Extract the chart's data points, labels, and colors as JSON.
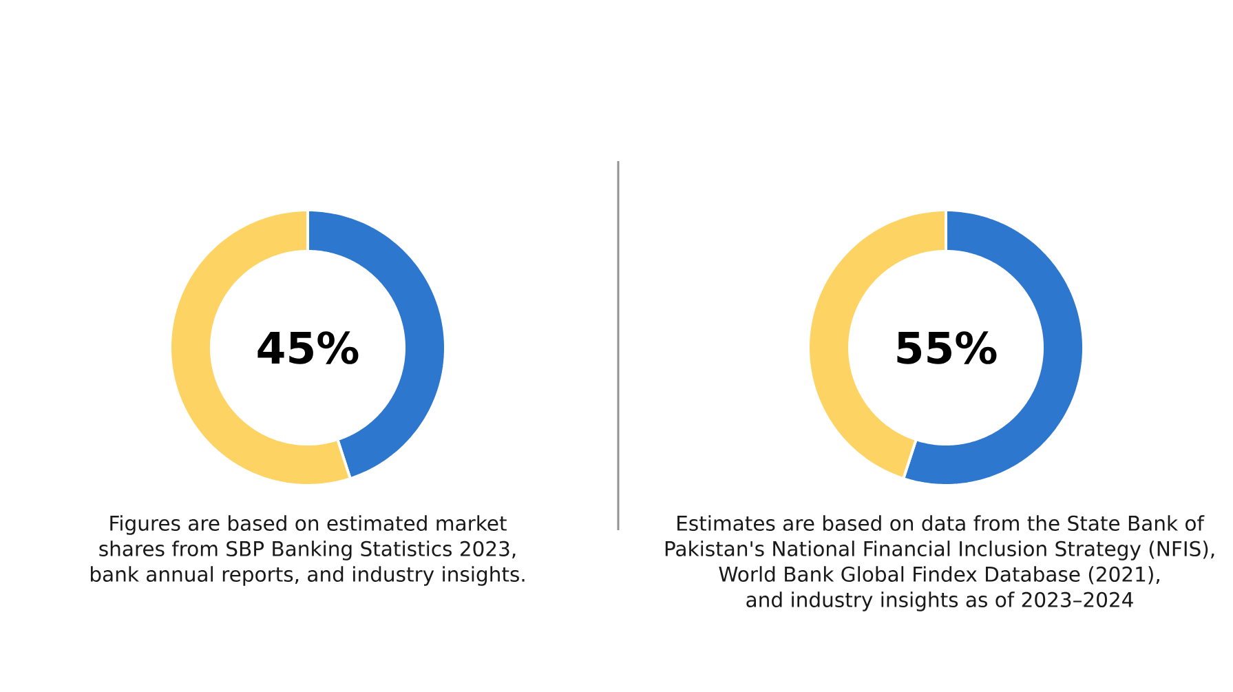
{
  "chart_data": [
    {
      "type": "donut",
      "categories": [
        null,
        null
      ],
      "values": [
        45,
        55
      ],
      "colors": [
        "#2d77cf",
        "#fdd464"
      ],
      "annotations": [
        "45%",
        "Figures are based on estimated market\nshares from SBP Banking Statistics 2023,\nbank annual reports, and industry insights."
      ]
    },
    {
      "type": "donut",
      "categories": [
        null,
        null
      ],
      "values": [
        55,
        45
      ],
      "colors": [
        "#2d77cf",
        "#fdd464"
      ],
      "annotations": [
        "55%",
        "Estimates are based on data from the State Bank of\nPakistan's National Financial Inclusion Strategy (NFIS),\nWorld Bank Global Findex Database (2021),\nand industry insights as of 2023–2024"
      ]
    }
  ]
}
